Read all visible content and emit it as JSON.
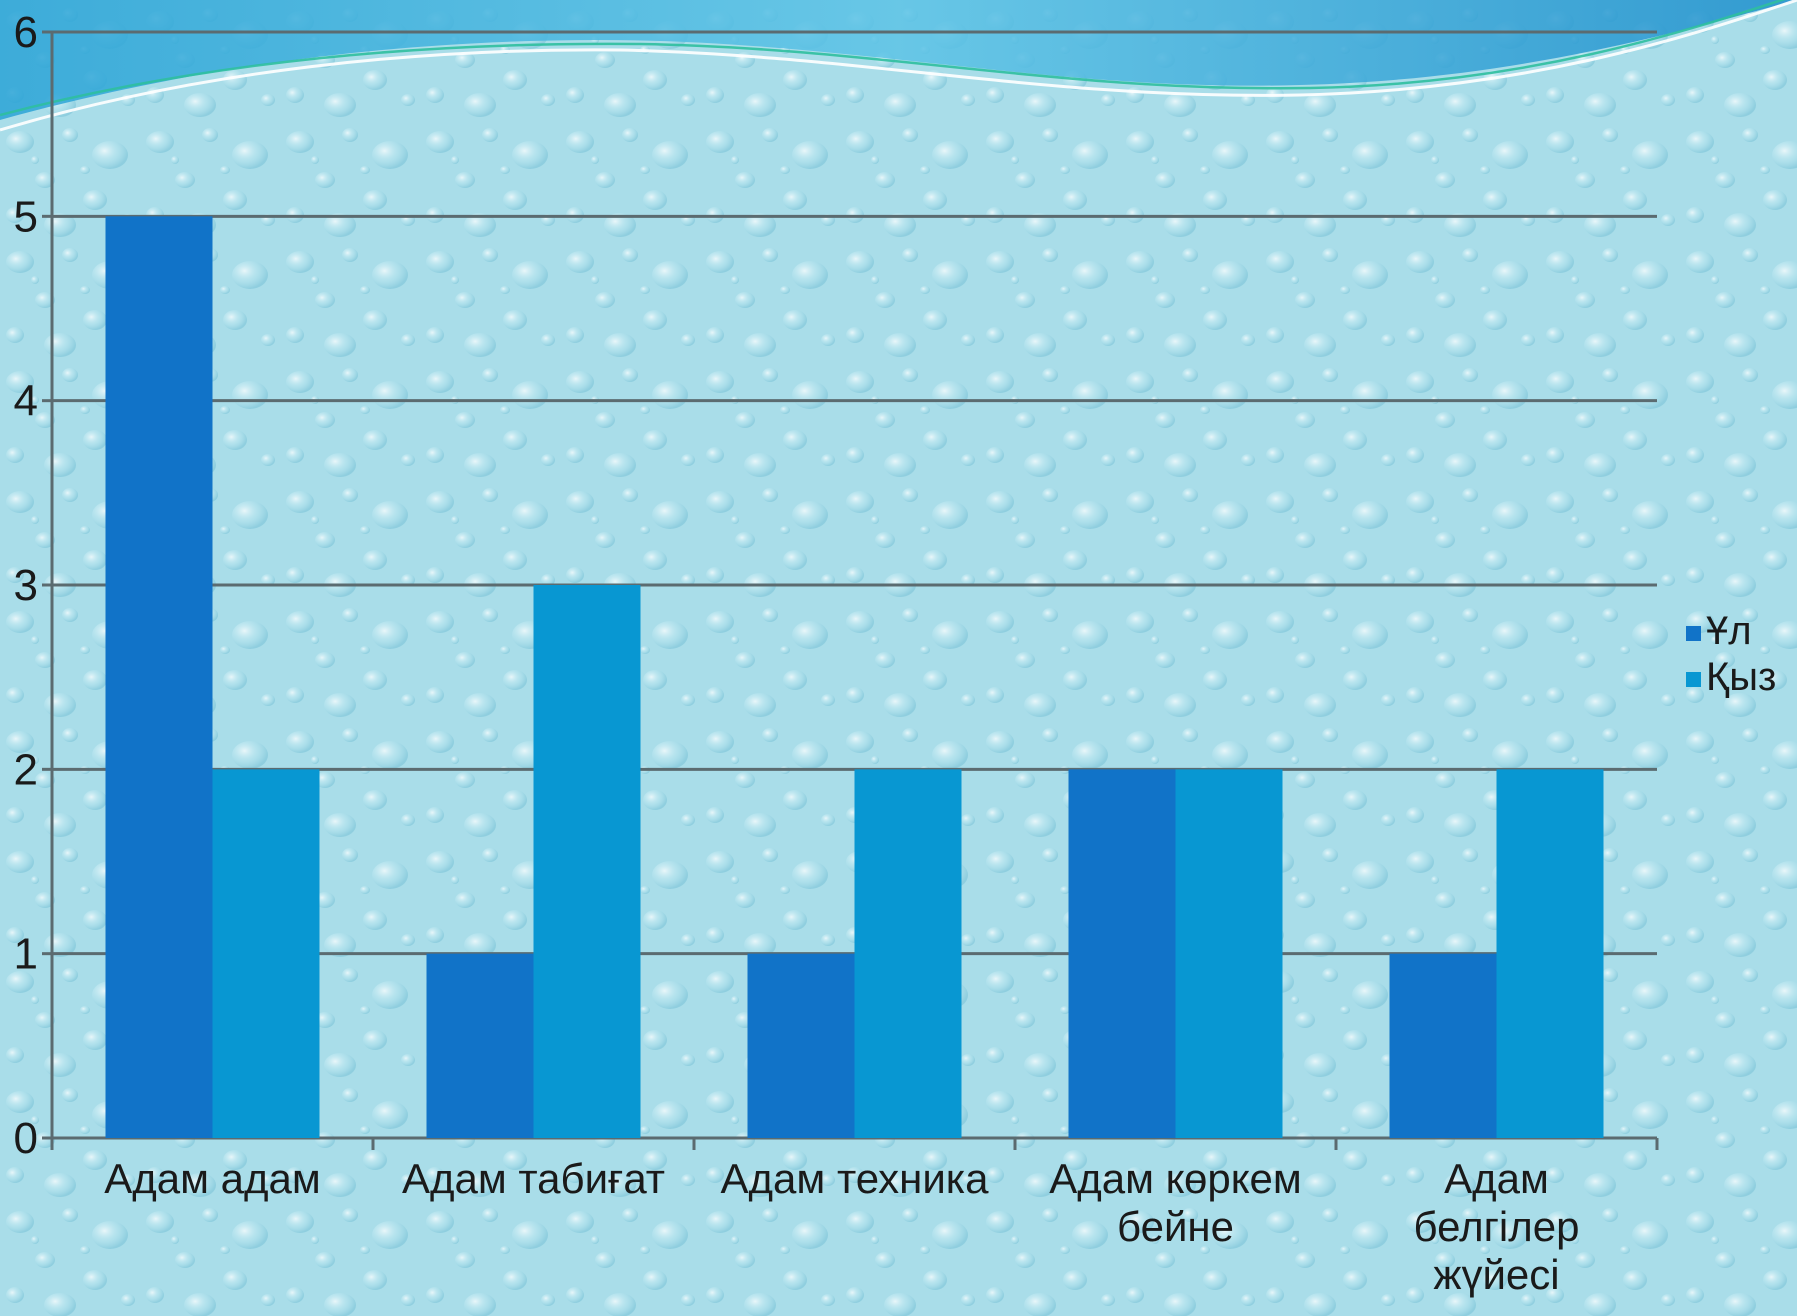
{
  "chart_data": {
    "type": "bar",
    "categories": [
      [
        "Адам адам"
      ],
      [
        "Адам табиғат"
      ],
      [
        "Адам техника"
      ],
      [
        "Адам көркем",
        "бейне"
      ],
      [
        "Адам",
        "белгілер",
        "жүйесі"
      ]
    ],
    "series": [
      {
        "name": "Ұл",
        "values": [
          5,
          1,
          1,
          2,
          1
        ],
        "color": "#1173c8"
      },
      {
        "name": "Қыз",
        "values": [
          2,
          3,
          2,
          2,
          2
        ],
        "color": "#0897d2"
      }
    ],
    "ylim": [
      0,
      6
    ],
    "yticks": [
      0,
      1,
      2,
      3,
      4,
      5,
      6
    ],
    "grid": true,
    "legend_position": "right",
    "title": "",
    "xlabel": "",
    "ylabel": ""
  }
}
